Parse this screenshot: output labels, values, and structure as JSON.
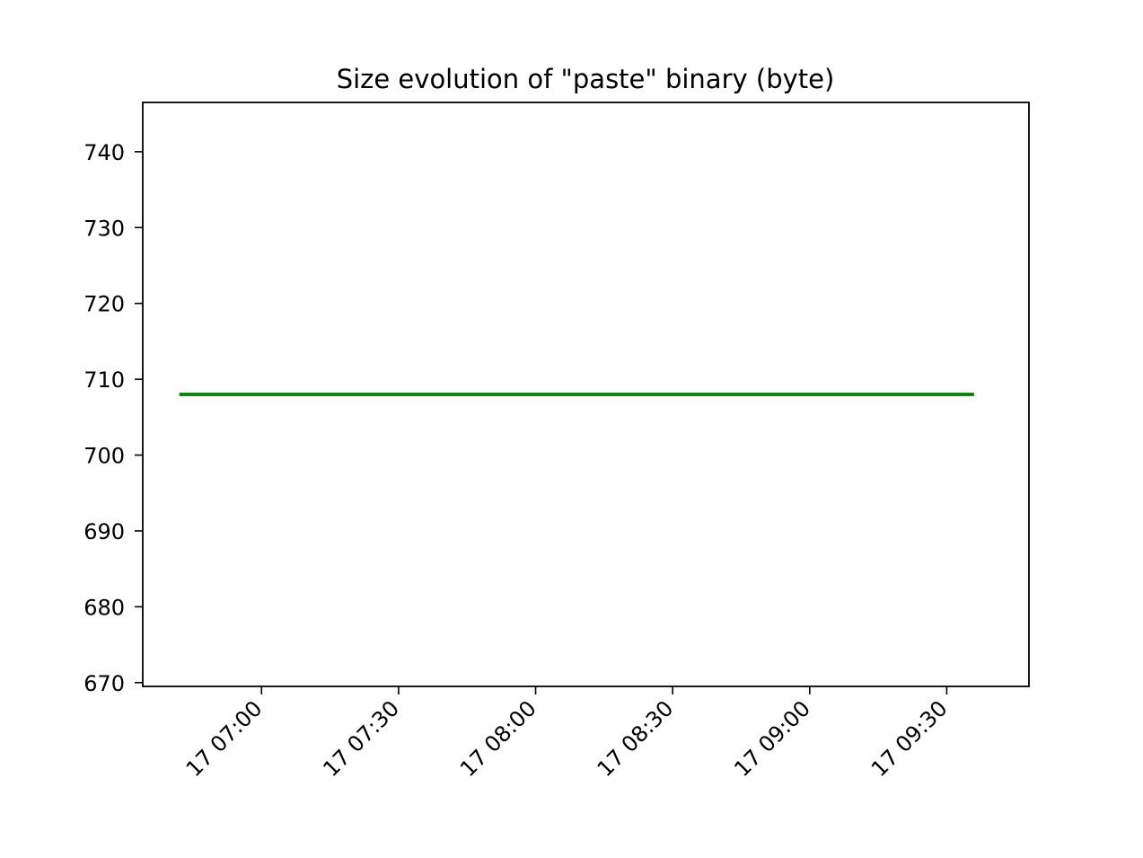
{
  "chart_data": {
    "type": "line",
    "title": "Size evolution of \"paste\" binary (byte)",
    "xlabel": "",
    "ylabel": "",
    "x_axis": {
      "kind": "time",
      "start": "17 06:34",
      "end": "17 09:48",
      "ticks": [
        "17 07:00",
        "17 07:30",
        "17 08:00",
        "17 08:30",
        "17 09:00",
        "17 09:30"
      ]
    },
    "ylim": [
      669.5,
      746.5
    ],
    "y_ticks": [
      670,
      680,
      690,
      700,
      710,
      720,
      730,
      740
    ],
    "grid": false,
    "series": [
      {
        "color": "#008000",
        "x": [
          "17 06:42",
          "17 09:36"
        ],
        "y": [
          708,
          708
        ]
      }
    ]
  }
}
